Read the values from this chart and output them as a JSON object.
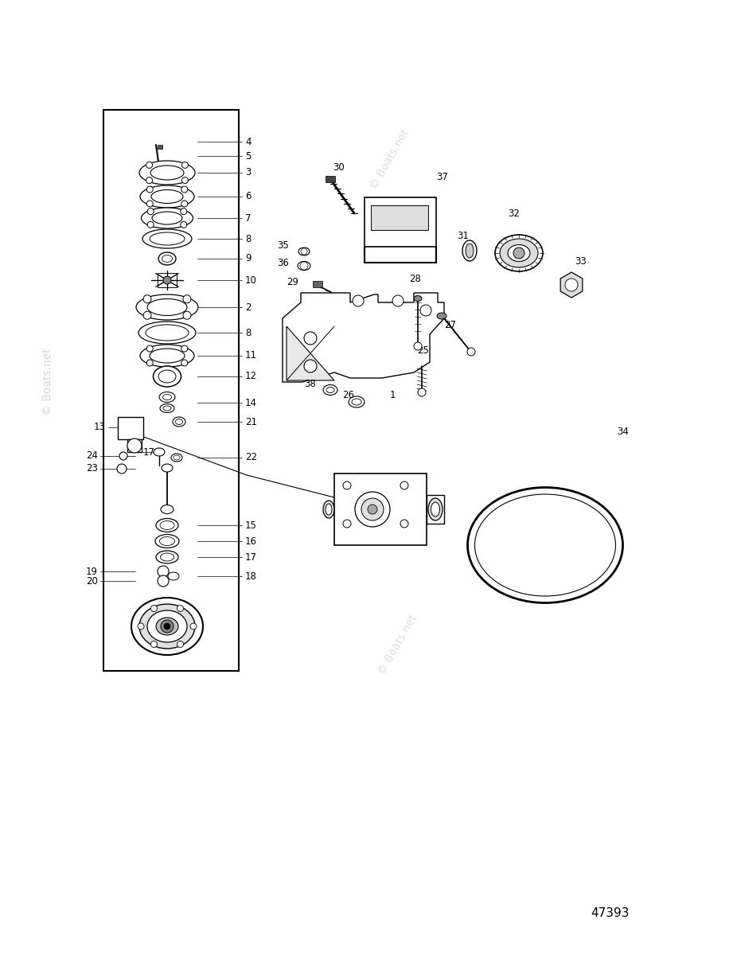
{
  "bg": "#ffffff",
  "lc": "#000000",
  "part_ref": "47393",
  "watermark": "© Boats.net",
  "wm_color": "#c8c8c8",
  "fig_w": 9.26,
  "fig_h": 12.0,
  "dpi": 100
}
